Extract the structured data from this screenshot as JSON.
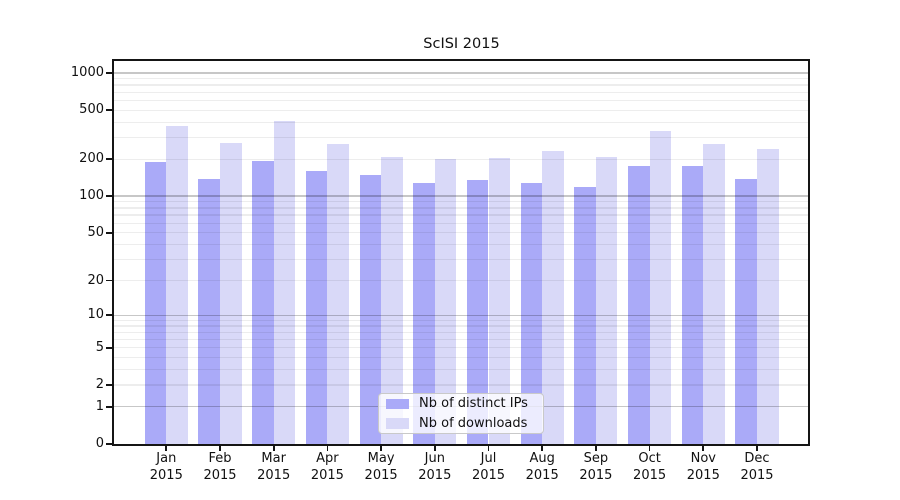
{
  "chart_data": {
    "type": "bar",
    "title": "ScISI 2015",
    "xlabel": "",
    "ylabel": "",
    "categories": [
      "Jan",
      "Feb",
      "Mar",
      "Apr",
      "May",
      "Jun",
      "Jul",
      "Aug",
      "Sep",
      "Oct",
      "Nov",
      "Dec"
    ],
    "x_year_label": "2015",
    "series": [
      {
        "name": "Nb of distinct IPs",
        "color": "#aaaaf8",
        "values": [
          190,
          138,
          195,
          161,
          150,
          127,
          135,
          128,
          118,
          175,
          175,
          138
        ]
      },
      {
        "name": "Nb of downloads",
        "color": "#d9d9f8",
        "values": [
          375,
          270,
          410,
          265,
          210,
          200,
          205,
          235,
          210,
          340,
          265,
          240
        ]
      }
    ],
    "yscale": "log(1+x)",
    "y_tick_values": [
      0,
      1,
      2,
      5,
      10,
      20,
      50,
      100,
      200,
      500,
      1000
    ],
    "ylim": [
      0,
      1250
    ],
    "grid": "horizontal major and minor gridlines",
    "legend_position": "lower center"
  }
}
